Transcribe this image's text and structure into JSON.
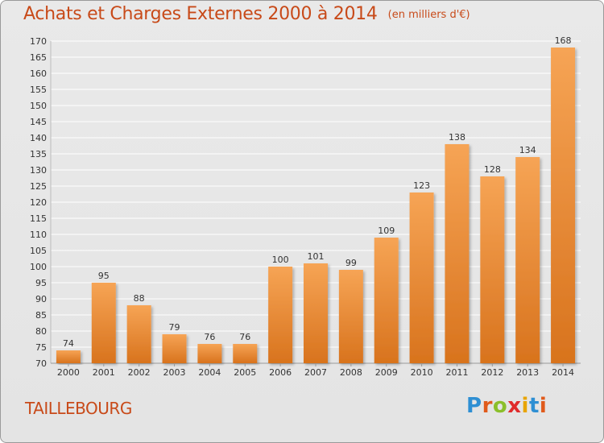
{
  "chart_data": {
    "type": "bar",
    "title": "Achats et Charges Externes 2000 à 2014",
    "subtitle": "(en milliers d'€)",
    "categories": [
      "2000",
      "2001",
      "2002",
      "2003",
      "2004",
      "2005",
      "2006",
      "2007",
      "2008",
      "2009",
      "2010",
      "2011",
      "2012",
      "2013",
      "2014"
    ],
    "values": [
      74,
      95,
      88,
      79,
      76,
      76,
      100,
      101,
      99,
      109,
      123,
      138,
      128,
      134,
      168
    ],
    "ylim": [
      70,
      170
    ],
    "ytick_step": 5,
    "grid": true,
    "legend": "none",
    "colors": {
      "bar_top": "#f6a455",
      "bar_bottom": "#d8731d",
      "grid": "#ffffff",
      "text": "#333333",
      "title": "#c84a19"
    }
  },
  "footer": {
    "commune": "TAILLEBOURG",
    "logo_letters": [
      "P",
      "r",
      "o",
      "x",
      "i",
      "t",
      "i"
    ],
    "logo_colors": [
      "#2e8fd3",
      "#e05a1b",
      "#8bbf2a",
      "#e02b2b",
      "#e8a400",
      "#2e8fd3",
      "#e05a1b"
    ]
  }
}
